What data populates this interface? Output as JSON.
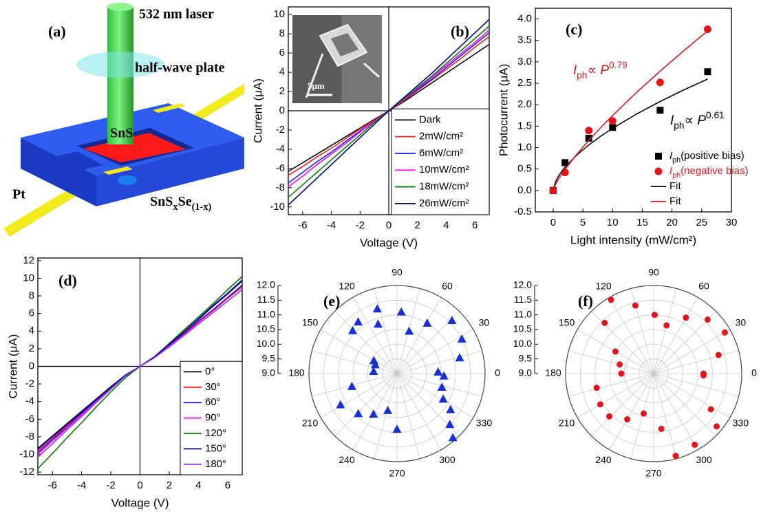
{
  "schematic": {
    "panel_label": "(a)",
    "laser": "532 nm laser",
    "plate": "half-wave plate",
    "channel": "SnS",
    "electrode": "Pt",
    "body": [
      {
        "t": "SnS"
      },
      {
        "t": "x",
        "sub": true
      },
      {
        "t": "Se"
      },
      {
        "t": "(1-x)",
        "sub": true
      }
    ]
  },
  "chart_data": [
    {
      "type": "line",
      "panel_label": "(b)",
      "xlabel": "Voltage (V)",
      "ylabel": "Current (μA)",
      "inset_scale": "5μm",
      "x": [
        -7,
        -6,
        -5,
        -4,
        -3,
        -2,
        -1,
        0,
        1,
        2,
        3,
        4,
        5,
        6,
        7
      ],
      "xlim": [
        -7,
        7
      ],
      "xticks": [
        -6,
        -4,
        -2,
        0,
        2,
        4,
        6
      ],
      "ylim": [
        -10.8,
        10.8
      ],
      "yticks": [
        -10,
        -8,
        -6,
        -4,
        -2,
        0,
        2,
        4,
        6,
        8,
        10
      ],
      "zero_axes": true,
      "legend": "lower right",
      "series": [
        {
          "name": "Dark",
          "color": "#000000",
          "values": [
            -6.3,
            -5.4,
            -4.5,
            -3.6,
            -2.7,
            -1.8,
            -0.9,
            0,
            0.9,
            1.9,
            2.9,
            3.9,
            4.9,
            5.9,
            6.9
          ]
        },
        {
          "name": "2mW/cm²",
          "color": "#ff1a1a",
          "values": [
            -6.7,
            -5.8,
            -4.8,
            -3.9,
            -2.9,
            -1.9,
            -1.0,
            0,
            1.0,
            2.1,
            3.2,
            4.3,
            5.4,
            6.6,
            7.7
          ]
        },
        {
          "name": "6mW/cm²",
          "color": "#1a1aff",
          "values": [
            -7.5,
            -6.4,
            -5.3,
            -4.3,
            -3.2,
            -2.1,
            -1.1,
            0,
            1.1,
            2.2,
            3.3,
            4.5,
            5.7,
            6.9,
            8.1
          ]
        },
        {
          "name": "10mW/cm²",
          "color": "#ff00ff",
          "values": [
            -7.9,
            -6.8,
            -5.6,
            -4.5,
            -3.4,
            -2.2,
            -1.1,
            0,
            1.1,
            2.3,
            3.5,
            4.7,
            5.9,
            7.1,
            8.4
          ]
        },
        {
          "name": "18mW/cm²",
          "color": "#008000",
          "values": [
            -9.0,
            -7.7,
            -6.4,
            -5.1,
            -3.8,
            -2.5,
            -1.2,
            0,
            1.2,
            2.4,
            3.6,
            4.9,
            6.2,
            7.5,
            8.8
          ]
        },
        {
          "name": "26mW/cm²",
          "color": "#000080",
          "values": [
            -9.8,
            -8.4,
            -7.0,
            -5.6,
            -4.2,
            -2.8,
            -1.4,
            0,
            1.3,
            2.6,
            3.9,
            5.3,
            6.7,
            8.1,
            9.5
          ]
        }
      ]
    },
    {
      "type": "scatter",
      "panel_label": "(c)",
      "xlabel": "Light intensity (mW/cm²)",
      "ylabel": "Photocurrent (μA)",
      "xlim": [
        -3,
        30
      ],
      "xticks": [
        0,
        5,
        10,
        15,
        20,
        25,
        30
      ],
      "ylim": [
        -0.5,
        4.25
      ],
      "yticks": [
        -0.5,
        {
          "value": 0,
          "label": "0.0"
        },
        0.5,
        {
          "value": 1,
          "label": "1.0"
        },
        1.5,
        {
          "value": 2,
          "label": "2.0"
        },
        2.5,
        {
          "value": 3,
          "label": "3.0"
        },
        3.5,
        {
          "value": 4,
          "label": "4.0"
        }
      ],
      "legend": "lower right",
      "annotations": [
        {
          "color": "#e8121b",
          "text": [
            {
              "t": "I",
              "i": true
            },
            {
              "t": "ph",
              "sub": true
            },
            {
              "t": "∝ "
            },
            {
              "t": "P",
              "i": true
            },
            {
              "t": "0.79",
              "sup": true
            }
          ]
        },
        {
          "color": "#000000",
          "text": [
            {
              "t": "I",
              "i": true
            },
            {
              "t": "ph",
              "sub": true
            },
            {
              "t": "∝ "
            },
            {
              "t": "P",
              "i": true
            },
            {
              "t": "0.61",
              "sup": true
            }
          ]
        }
      ],
      "series": [
        {
          "name": [
            {
              "t": "I",
              "i": true
            },
            {
              "t": "ph",
              "sub": true
            },
            {
              "t": "(positive bias)"
            }
          ],
          "marker": "square",
          "color": "#000000",
          "x": [
            0,
            2,
            6,
            10,
            18,
            26
          ],
          "values": [
            0,
            0.65,
            1.22,
            1.47,
            1.87,
            2.77
          ]
        },
        {
          "name": [
            {
              "t": "I",
              "i": true
            },
            {
              "t": "ph",
              "sub": true
            },
            {
              "t": "(negative bias)"
            }
          ],
          "marker": "circle",
          "color": "#e8121b",
          "x": [
            0,
            2,
            6,
            10,
            18,
            26
          ],
          "values": [
            0,
            0.42,
            1.4,
            1.62,
            2.52,
            3.76
          ]
        },
        {
          "name": "Fit",
          "color": "#000000",
          "x": [
            0,
            0.5,
            1,
            2,
            4,
            6,
            8,
            10,
            14,
            18,
            22,
            26
          ],
          "values": [
            0,
            0.233,
            0.356,
            0.543,
            0.829,
            1.062,
            1.266,
            1.45,
            1.781,
            2.075,
            2.347,
            2.599
          ]
        },
        {
          "name": "Fit",
          "color": "#e8121b",
          "x": [
            0,
            0.5,
            1,
            2,
            4,
            6,
            8,
            10,
            14,
            18,
            22,
            26
          ],
          "values": [
            0,
            0.164,
            0.284,
            0.49,
            0.848,
            1.168,
            1.466,
            1.749,
            2.281,
            2.781,
            3.261,
            3.721
          ]
        }
      ]
    },
    {
      "type": "line",
      "panel_label": "(d)",
      "xlabel": "Voltage (V)",
      "ylabel": "Current (μA)",
      "x": [
        -7,
        -6,
        -5,
        -4,
        -3,
        -2,
        -1,
        0,
        1,
        2,
        3,
        4,
        5,
        6,
        7
      ],
      "xlim": [
        -7,
        7
      ],
      "xticks": [
        -6,
        -4,
        -2,
        0,
        2,
        4,
        6
      ],
      "ylim": [
        -12.3,
        12.3
      ],
      "yticks": [
        -12,
        -10,
        -8,
        -6,
        -4,
        -2,
        0,
        2,
        4,
        6,
        8,
        10,
        12
      ],
      "zero_axes": true,
      "legend": "lower right",
      "series": [
        {
          "name": "0°",
          "color": "#000000",
          "values": [
            -9.3,
            -7.9,
            -6.5,
            -5.1,
            -3.7,
            -2.3,
            -1.0,
            0,
            1.0,
            2.3,
            3.7,
            5.1,
            6.4,
            7.8,
            9.2
          ]
        },
        {
          "name": "30°",
          "color": "#ff1a1a",
          "values": [
            -9.6,
            -8.2,
            -6.7,
            -5.3,
            -3.8,
            -2.4,
            -1.1,
            0,
            1.1,
            2.6,
            4.1,
            5.6,
            7.1,
            8.7,
            10.2
          ]
        },
        {
          "name": "60°",
          "color": "#1a1aff",
          "values": [
            -9.8,
            -8.3,
            -6.9,
            -5.4,
            -3.9,
            -2.5,
            -1.1,
            0,
            1.1,
            2.4,
            3.9,
            5.3,
            6.8,
            8.2,
            9.7
          ]
        },
        {
          "name": "90°",
          "color": "#ff00ff",
          "values": [
            -10.0,
            -8.5,
            -7.0,
            -5.5,
            -4.0,
            -2.5,
            -1.1,
            0,
            1.0,
            2.3,
            3.6,
            5.0,
            6.3,
            7.7,
            9.0
          ]
        },
        {
          "name": "120°",
          "color": "#008000",
          "values": [
            -11.6,
            -9.9,
            -8.1,
            -6.4,
            -4.6,
            -2.9,
            -1.3,
            0,
            1.1,
            2.6,
            4.1,
            5.6,
            7.1,
            8.7,
            10.2
          ]
        },
        {
          "name": "150°",
          "color": "#000080",
          "values": [
            -9.4,
            -8.0,
            -6.6,
            -5.2,
            -3.8,
            -2.4,
            -1.0,
            0,
            1.1,
            2.5,
            3.9,
            5.4,
            6.9,
            8.3,
            9.8
          ]
        },
        {
          "name": "180°",
          "color": "#9b30ff",
          "values": [
            -10.3,
            -8.8,
            -7.2,
            -5.7,
            -4.1,
            -2.6,
            -1.1,
            0,
            1.0,
            2.2,
            3.5,
            4.8,
            6.1,
            7.4,
            8.7
          ]
        }
      ]
    },
    {
      "type": "polar",
      "panel_label": "(e)",
      "marker": "triangle",
      "color": "#1530d8",
      "rlim": [
        9,
        12
      ],
      "rticks": [
        {
          "value": 9,
          "label": "9.0"
        },
        9.5,
        {
          "value": 10,
          "label": "10.0"
        },
        10.5,
        {
          "value": 11,
          "label": "11.0"
        },
        11.5,
        {
          "value": 12,
          "label": "12.0"
        }
      ],
      "thetaticks": [
        0,
        30,
        60,
        90,
        120,
        150,
        180,
        210,
        240,
        270,
        300,
        330
      ],
      "theta": [
        107,
        86,
        127,
        111,
        74,
        59,
        44,
        28,
        136,
        14,
        151,
        158,
        175,
        2,
        357,
        343,
        331,
        326,
        316,
        311,
        270,
        256,
        240,
        226,
        209,
        196
      ],
      "r": [
        11.3,
        11.1,
        11.2,
        10.8,
        10.5,
        11.0,
        11.6,
        11.5,
        11.1,
        11.2,
        9.9,
        9.8,
        9.8,
        10.4,
        10.6,
        10.6,
        10.8,
        11.2,
        11.5,
        11.9,
        10.9,
        10.3,
        10.6,
        10.9,
        11.2,
        10.6
      ]
    },
    {
      "type": "polar",
      "panel_label": "(f)",
      "marker": "circle",
      "color": "#e8121b",
      "rlim": [
        9,
        12
      ],
      "rticks": [
        {
          "value": 9,
          "label": "9.0"
        },
        9.5,
        {
          "value": 10,
          "label": "10.0"
        },
        10.5,
        {
          "value": 11,
          "label": "11.0"
        },
        11.5,
        {
          "value": 12,
          "label": "12.0"
        }
      ],
      "thetaticks": [
        0,
        30,
        60,
        90,
        120,
        150,
        180,
        210,
        240,
        270,
        300,
        330
      ],
      "theta": [
        120,
        105,
        89,
        75,
        60,
        45,
        30,
        16,
        134,
        150,
        165,
        180,
        194,
        210,
        224,
        240,
        256,
        278,
        285,
        300,
        320,
        328,
        0,
        358
      ],
      "r": [
        11.9,
        11.4,
        11.0,
        10.7,
        11.2,
        11.6,
        11.8,
        11.3,
        11.4,
        10.5,
        10.2,
        10.1,
        11.0,
        11.1,
        11.1,
        10.8,
        10.4,
        10.9,
        11.9,
        11.8,
        11.8,
        11.3,
        10.7,
        10.7
      ]
    }
  ]
}
